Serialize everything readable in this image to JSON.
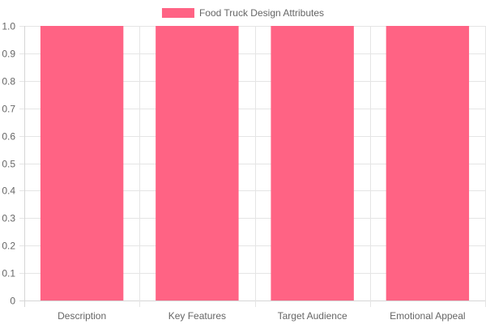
{
  "chart_data": {
    "type": "bar",
    "categories": [
      "Description",
      "Key Features",
      "Target Audience",
      "Emotional Appeal"
    ],
    "series": [
      {
        "name": "Food Truck Design Attributes",
        "values": [
          1,
          1,
          1,
          1
        ],
        "color": "#ff6384"
      }
    ],
    "ylim": [
      0,
      1
    ],
    "yticks": [
      "0",
      "0.1",
      "0.2",
      "0.3",
      "0.4",
      "0.5",
      "0.6",
      "0.7",
      "0.8",
      "0.9",
      "1.0"
    ],
    "grid": true,
    "legend_position": "top-center",
    "title": "",
    "xlabel": "",
    "ylabel": ""
  }
}
